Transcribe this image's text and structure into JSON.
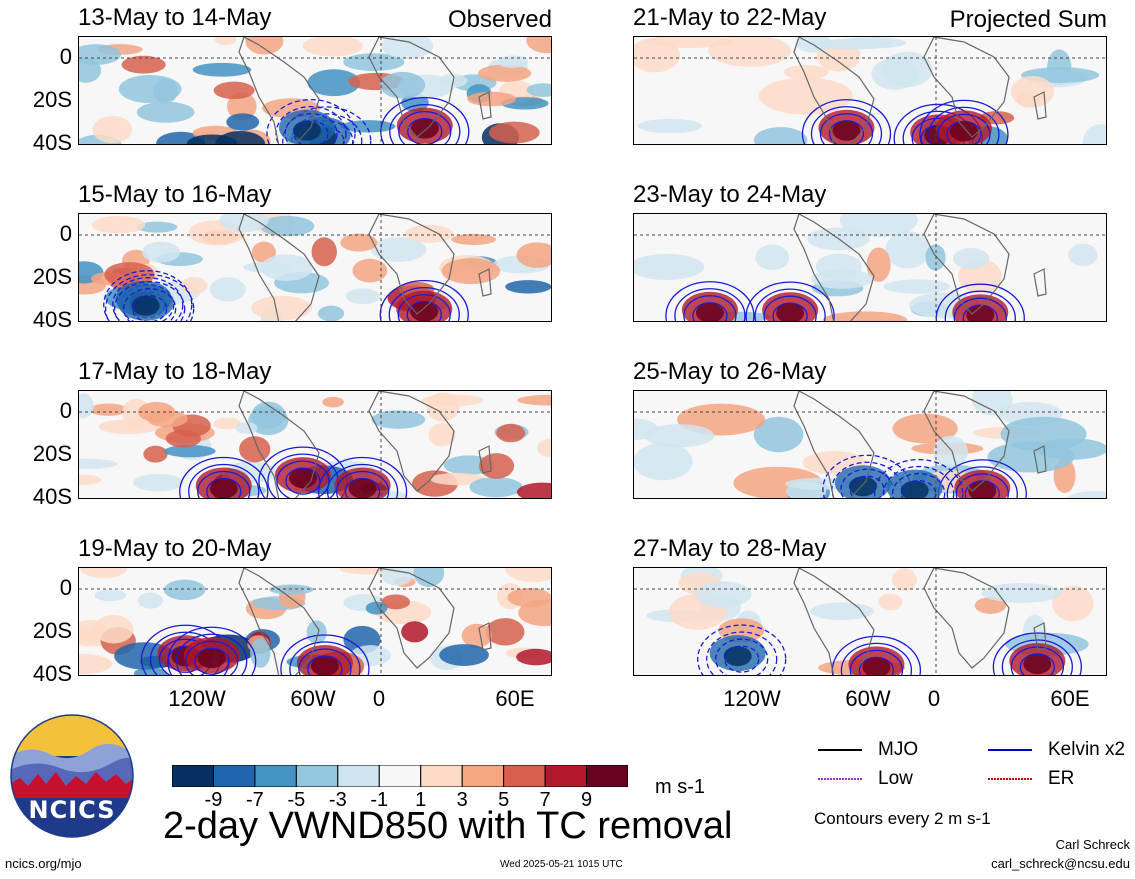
{
  "panels": [
    {
      "id": "obs1",
      "title": "13-May to 14-May",
      "tag": "Observed",
      "col": 0,
      "row": 0
    },
    {
      "id": "obs2",
      "title": "15-May to 16-May",
      "tag": "",
      "col": 0,
      "row": 1
    },
    {
      "id": "obs3",
      "title": "17-May to 18-May",
      "tag": "",
      "col": 0,
      "row": 2
    },
    {
      "id": "obs4",
      "title": "19-May to 20-May",
      "tag": "",
      "col": 0,
      "row": 3
    },
    {
      "id": "prj1",
      "title": "21-May to 22-May",
      "tag": "Projected Sum",
      "col": 1,
      "row": 0
    },
    {
      "id": "prj2",
      "title": "23-May to 24-May",
      "tag": "",
      "col": 1,
      "row": 1
    },
    {
      "id": "prj3",
      "title": "25-May to 26-May",
      "tag": "",
      "col": 1,
      "row": 2
    },
    {
      "id": "prj4",
      "title": "27-May to 28-May",
      "tag": "",
      "col": 1,
      "row": 3
    }
  ],
  "lat_labels": [
    "0",
    "20S",
    "40S"
  ],
  "lon_labels": [
    "120W",
    "60W",
    "0",
    "60E"
  ],
  "colorbar": {
    "colors": [
      "#053061",
      "#2166ac",
      "#4393c3",
      "#92c5de",
      "#d1e5f0",
      "#f7f7f7",
      "#fddbc7",
      "#f4a582",
      "#d6604d",
      "#b2182b",
      "#67001f"
    ],
    "labels": [
      "-9",
      "-7",
      "-5",
      "-3",
      "-1",
      "1",
      "3",
      "5",
      "7",
      "9"
    ],
    "units": "m s-1"
  },
  "title": "2-day VWND850 with TC removal",
  "legend": {
    "items": [
      {
        "label": "MJO",
        "color": "#000000",
        "style": "solid"
      },
      {
        "label": "Kelvin x2",
        "color": "#0000cc",
        "style": "solid"
      },
      {
        "label": "Low",
        "color": "#9933cc",
        "style": "dotted"
      },
      {
        "label": "ER",
        "color": "#cc0000",
        "style": "dotted"
      }
    ],
    "note": "Contours every 2 m s-1"
  },
  "logo": {
    "text": "NCICS"
  },
  "footer": {
    "url": "ncics.org/mjo",
    "timestamp": "Wed 2025-05-21 1015 UTC",
    "author": "Carl Schreck",
    "email": "carl_schreck@ncsu.edu"
  }
}
